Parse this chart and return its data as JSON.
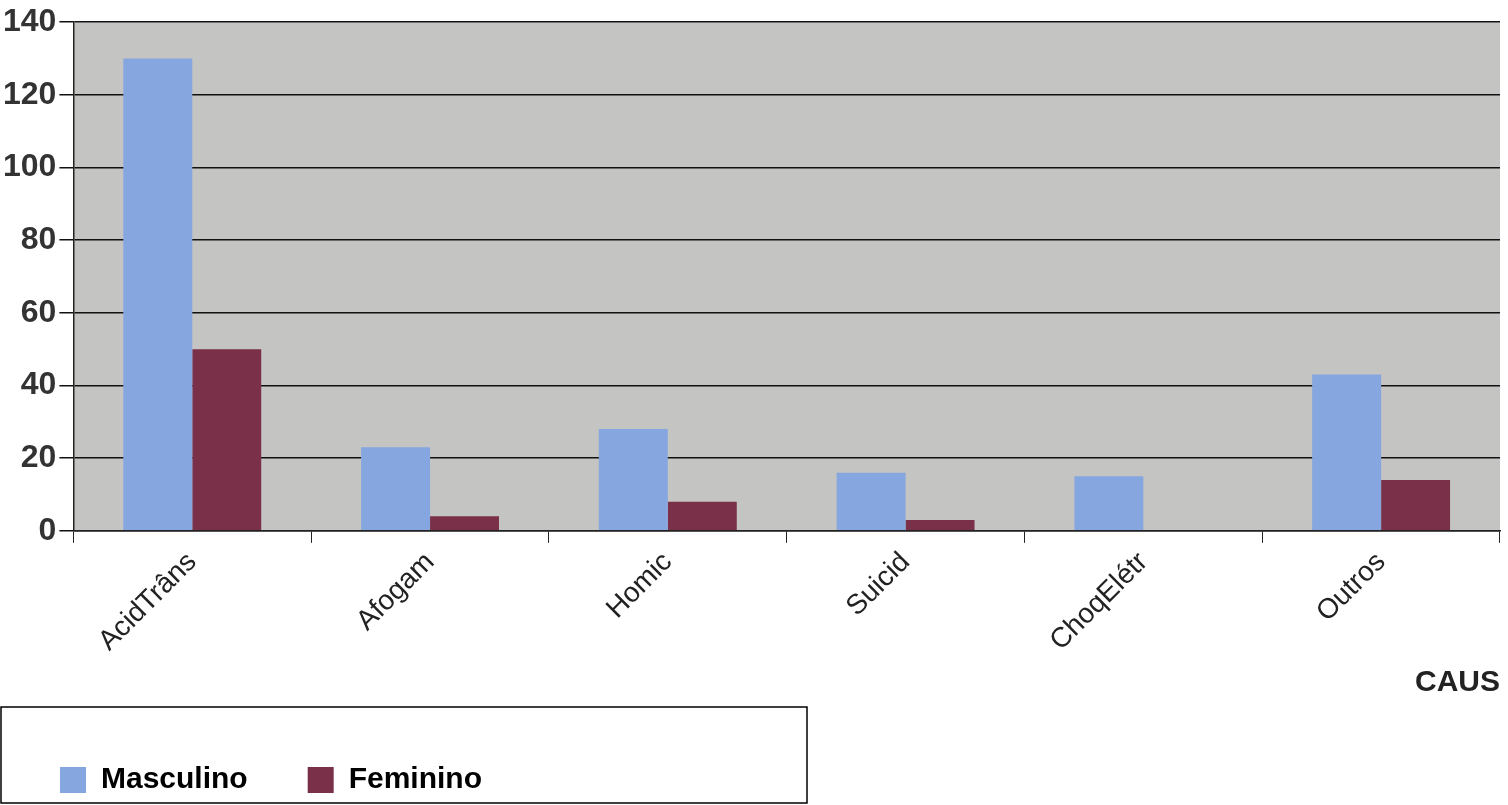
{
  "chart_data": {
    "type": "bar",
    "xlabel": "CAUS",
    "categories": [
      "AcidTrâns",
      "Afogam",
      "Homic",
      "Suicid",
      "ChoqElétr",
      "Outros"
    ],
    "series": [
      {
        "name": "Masculino",
        "color": "#86a6e0",
        "values": [
          130,
          23,
          28,
          16,
          15,
          43
        ]
      },
      {
        "name": "Feminino",
        "color": "#7a3048",
        "values": [
          50,
          4,
          8,
          3,
          0,
          14
        ]
      }
    ],
    "ylim": [
      0,
      140
    ],
    "yticks": [
      0,
      20,
      40,
      60,
      80,
      100,
      120,
      140
    ],
    "grid": "y",
    "legend": "bottom left"
  }
}
